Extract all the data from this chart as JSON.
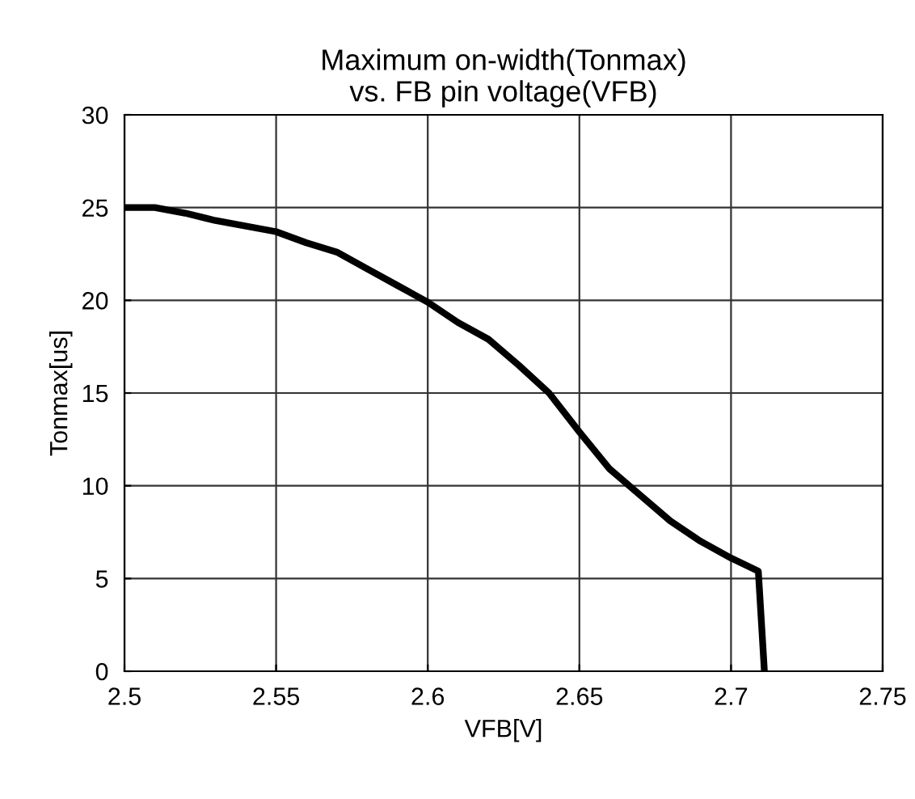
{
  "chart_data": {
    "type": "line",
    "title": "Maximum on-width(Tonmax)\nvs. FB pin voltage(VFB)",
    "xlabel": "VFB[V]",
    "ylabel": "Tonmax[us]",
    "series": [
      {
        "color": "#000000",
        "x": [
          2.5,
          2.51,
          2.52,
          2.53,
          2.55,
          2.56,
          2.57,
          2.58,
          2.59,
          2.6,
          2.61,
          2.62,
          2.63,
          2.64,
          2.65,
          2.66,
          2.67,
          2.68,
          2.69,
          2.7,
          2.709,
          2.711
        ],
        "values": [
          25,
          25,
          24.7,
          24.3,
          23.7,
          23.1,
          22.6,
          21.7,
          20.8,
          19.9,
          18.8,
          17.9,
          16.5,
          15,
          12.9,
          10.9,
          9.5,
          8.1,
          7.0,
          6.1,
          5.4,
          0
        ]
      }
    ],
    "xlim": [
      2.5,
      2.75
    ],
    "xticks": [
      2.5,
      2.55,
      2.6,
      2.65,
      2.7,
      2.75
    ],
    "ylim": [
      0,
      30
    ],
    "yticks": [
      0,
      5,
      10,
      15,
      20,
      25,
      30
    ],
    "grid": true,
    "marker": "none",
    "line_style": "solid"
  }
}
